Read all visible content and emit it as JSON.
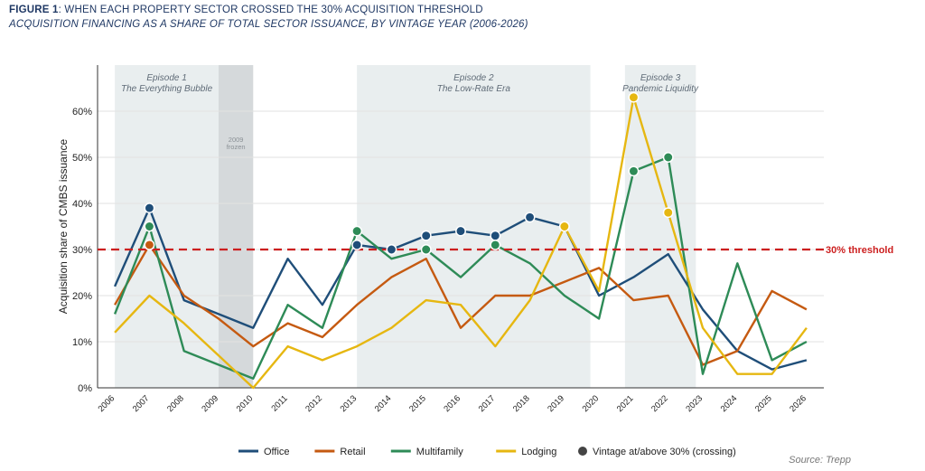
{
  "header": {
    "figure_label": "FIGURE 1",
    "title_rest": ": WHEN EACH PROPERTY SECTOR CROSSED THE 30% ACQUISITION THRESHOLD",
    "subtitle": "ACQUISITION FINANCING AS A SHARE OF TOTAL SECTOR ISSUANCE, BY VINTAGE YEAR (2006-2026)"
  },
  "source": "Source: Trepp",
  "colors": {
    "office": "#1f4e79",
    "retail": "#c55a11",
    "multifamily": "#2e8b57",
    "lodging": "#e6b711",
    "threshold": "#cc1f1f",
    "episode_band": "#e9eeef",
    "frozen_band": "#d5d9db"
  },
  "chart_data": {
    "type": "line",
    "x": [
      2006,
      2007,
      2008,
      2009,
      2010,
      2011,
      2012,
      2013,
      2014,
      2015,
      2016,
      2017,
      2018,
      2019,
      2020,
      2021,
      2022,
      2023,
      2024,
      2025,
      2026
    ],
    "ylabel": "Acquisition share of CMBS issuance",
    "ylim": [
      0,
      70
    ],
    "yticks": [
      0,
      10,
      20,
      30,
      40,
      50,
      60
    ],
    "ytick_labels": [
      "0%",
      "10%",
      "20%",
      "30%",
      "40%",
      "50%",
      "60%"
    ],
    "grid": true,
    "series": [
      {
        "name": "Office",
        "key": "office",
        "values": [
          22,
          39,
          19,
          16,
          13,
          28,
          18,
          31,
          30,
          33,
          34,
          33,
          37,
          35,
          20,
          24,
          29,
          17,
          8,
          4,
          6
        ]
      },
      {
        "name": "Retail",
        "key": "retail",
        "values": [
          18,
          31,
          20,
          15,
          9,
          14,
          11,
          18,
          24,
          28,
          13,
          20,
          20,
          23,
          26,
          19,
          20,
          5,
          8,
          21,
          17
        ]
      },
      {
        "name": "Multifamily",
        "key": "multifamily",
        "values": [
          16,
          35,
          8,
          5,
          2,
          18,
          13,
          34,
          28,
          30,
          24,
          31,
          27,
          20,
          15,
          47,
          50,
          3,
          27,
          6,
          10
        ]
      },
      {
        "name": "Lodging",
        "key": "lodging",
        "values": [
          12,
          20,
          14,
          7,
          0,
          9,
          6,
          9,
          13,
          19,
          18,
          9,
          19,
          35,
          21,
          63,
          38,
          13,
          3,
          3,
          13
        ]
      }
    ],
    "crossings": [
      {
        "series": "office",
        "year": 2007,
        "value": 39
      },
      {
        "series": "retail",
        "year": 2007,
        "value": 31
      },
      {
        "series": "multifamily",
        "year": 2007,
        "value": 35
      },
      {
        "series": "office",
        "year": 2013,
        "value": 31
      },
      {
        "series": "multifamily",
        "year": 2013,
        "value": 34
      },
      {
        "series": "office",
        "year": 2014,
        "value": 30
      },
      {
        "series": "office",
        "year": 2015,
        "value": 33
      },
      {
        "series": "multifamily",
        "year": 2015,
        "value": 30
      },
      {
        "series": "office",
        "year": 2016,
        "value": 34
      },
      {
        "series": "office",
        "year": 2017,
        "value": 33
      },
      {
        "series": "multifamily",
        "year": 2017,
        "value": 31
      },
      {
        "series": "office",
        "year": 2018,
        "value": 37
      },
      {
        "series": "lodging",
        "year": 2019,
        "value": 35
      },
      {
        "series": "lodging",
        "year": 2021,
        "value": 63
      },
      {
        "series": "multifamily",
        "year": 2021,
        "value": 47
      },
      {
        "series": "multifamily",
        "year": 2022,
        "value": 50
      },
      {
        "series": "lodging",
        "year": 2022,
        "value": 38
      }
    ],
    "threshold": {
      "value": 30,
      "label": "30% threshold"
    },
    "bands": [
      {
        "from": 2006,
        "to": 2009,
        "kind": "episode",
        "line1": "Episode 1",
        "line2": "The Everything Bubble"
      },
      {
        "from": 2009,
        "to": 2010,
        "kind": "frozen",
        "line1": "2009",
        "line2": "frozen"
      },
      {
        "from": 2013,
        "to": 2019.75,
        "kind": "episode",
        "line1": "Episode 2",
        "line2": "The Low-Rate Era"
      },
      {
        "from": 2020.75,
        "to": 2022.8,
        "kind": "episode",
        "line1": "Episode 3",
        "line2": "Pandemic Liquidity"
      }
    ],
    "legend": {
      "placement": "bottom",
      "marker_label": "Vintage at/above 30% (crossing)"
    }
  }
}
